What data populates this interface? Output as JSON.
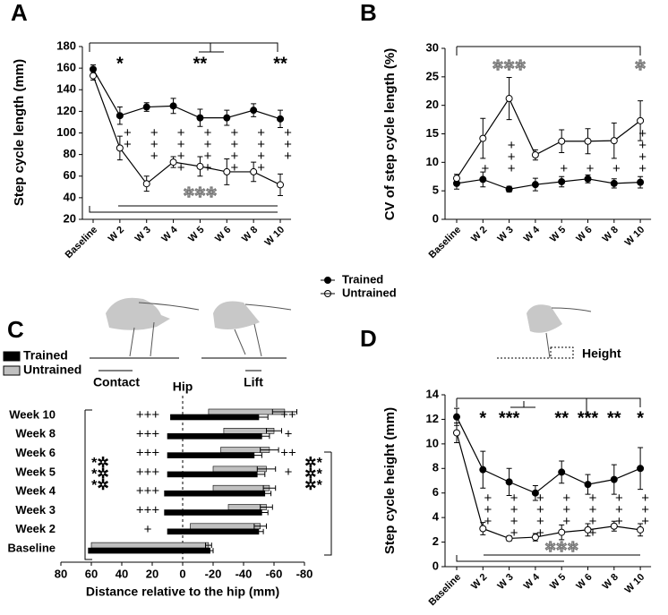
{
  "panels": [
    "A",
    "B",
    "C",
    "D"
  ],
  "legend": [
    {
      "name": "Trained",
      "fill": "#000000"
    },
    {
      "name": "Untrained",
      "fill": "#ffffff"
    }
  ],
  "chart_data": [
    {
      "type": "line",
      "ylabel": "Step cycle length (mm)",
      "categories": [
        "Baseline",
        "W 2",
        "W 3",
        "W 4",
        "W 5",
        "W 6",
        "W 8",
        "W 10"
      ],
      "series": [
        {
          "color": "#000000",
          "fill": "#000000",
          "values": [
            159,
            116,
            124,
            125,
            114,
            114,
            121,
            113
          ],
          "errors": [
            4,
            8,
            4,
            7,
            8,
            7,
            6,
            8
          ]
        },
        {
          "color": "#000000",
          "fill": "#ffffff",
          "values": [
            153,
            86,
            53,
            73,
            69,
            64,
            64,
            52
          ],
          "errors": [
            4,
            11,
            7,
            5,
            9,
            12,
            9,
            10
          ]
        }
      ],
      "ylim": [
        20,
        180
      ],
      "yticks": [
        20,
        40,
        60,
        80,
        100,
        120,
        140,
        160,
        180
      ],
      "stars": [
        null,
        "*",
        null,
        null,
        "**",
        null,
        null,
        "**"
      ],
      "plus": [
        null,
        "++",
        "+++",
        "++++",
        "++++",
        "++++",
        "++++",
        "+++"
      ],
      "hollow": [
        null,
        null,
        null,
        null,
        "✲✲✲",
        null,
        null,
        null
      ]
    },
    {
      "type": "line",
      "ylabel": "CV of step cycle length (%)",
      "categories": [
        "Baseline",
        "W 2",
        "W 3",
        "W 4",
        "W 5",
        "W 6",
        "W 8",
        "W 10"
      ],
      "series": [
        {
          "color": "#000000",
          "fill": "#000000",
          "values": [
            6.3,
            7.0,
            5.3,
            6.1,
            6.6,
            7.1,
            6.3,
            6.5
          ],
          "errors": [
            1.0,
            1.3,
            0.5,
            1.1,
            0.9,
            0.7,
            0.8,
            1.0
          ]
        },
        {
          "color": "#000000",
          "fill": "#ffffff",
          "values": [
            7.2,
            14.2,
            21.2,
            11.3,
            13.7,
            13.7,
            13.8,
            17.3
          ],
          "errors": [
            0.7,
            3.5,
            3.7,
            0.9,
            2.0,
            2.2,
            3.1,
            3.5
          ]
        }
      ],
      "ylim": [
        0,
        30
      ],
      "yticks": [
        0,
        5,
        10,
        15,
        20,
        25,
        30
      ],
      "plus": [
        null,
        "+",
        "+++",
        null,
        "+",
        "+",
        "+",
        "++++"
      ],
      "hollow": [
        null,
        null,
        "✲✲✲",
        null,
        null,
        null,
        null,
        "✲"
      ]
    },
    {
      "type": "range_bar",
      "xlabel": "Distance relative to the hip (mm)",
      "categories": [
        "Week 10",
        "Week 8",
        "Week 6",
        "Week 5",
        "Week 4",
        "Week 3",
        "Week 2",
        "Baseline"
      ],
      "series": [
        {
          "name": "Trained",
          "color": "#000000",
          "values": [
            [
              8,
              -50
            ],
            [
              10,
              -52
            ],
            [
              10,
              -47
            ],
            [
              10,
              -49
            ],
            [
              12,
              -54
            ],
            [
              12,
              -52
            ],
            [
              10,
              -50
            ],
            [
              62,
              -18
            ]
          ],
          "errors": [
            6,
            5,
            5,
            5,
            4,
            4,
            3,
            2
          ]
        },
        {
          "name": "Untrained",
          "color": "#c0c0c0",
          "values": [
            [
              -17,
              -67
            ],
            [
              -27,
              -60
            ],
            [
              -25,
              -57
            ],
            [
              -20,
              -55
            ],
            [
              -20,
              -57
            ],
            [
              -30,
              -55
            ],
            [
              -5,
              -51
            ],
            [
              60,
              -17
            ]
          ],
          "errors": [
            8,
            5,
            6,
            6,
            4,
            4,
            4,
            2
          ]
        }
      ],
      "xlim": [
        80,
        -80
      ],
      "xticks": [
        80,
        60,
        40,
        20,
        0,
        -20,
        -40,
        -60,
        -80
      ],
      "hip_label": "Hip",
      "contact_label": "Contact",
      "lift_label": "Lift",
      "plus_left": [
        "+++",
        "+++",
        "+++",
        "+++",
        "+++",
        "+++",
        "+",
        null
      ],
      "plus_right": [
        "++",
        "+",
        "++",
        "+",
        null,
        null,
        null,
        null
      ],
      "stars_left": [
        "*✲",
        "*✲",
        "*✲"
      ],
      "stars_right": [
        "✲*",
        "✲*",
        "✲*"
      ]
    },
    {
      "type": "line",
      "ylabel": "Step cycle height (mm)",
      "categories": [
        "Baseline",
        "W 2",
        "W 3",
        "W 4",
        "W 5",
        "W 6",
        "W 8",
        "W 10"
      ],
      "series": [
        {
          "color": "#000000",
          "fill": "#000000",
          "values": [
            12.2,
            7.9,
            6.9,
            6.0,
            7.7,
            6.7,
            7.1,
            8.0
          ],
          "errors": [
            0.7,
            1.5,
            1.1,
            0.6,
            0.9,
            0.8,
            1.2,
            1.7
          ]
        },
        {
          "color": "#000000",
          "fill": "#ffffff",
          "values": [
            10.9,
            3.1,
            2.3,
            2.4,
            2.8,
            3.0,
            3.3,
            3.0
          ],
          "errors": [
            0.8,
            0.5,
            0.2,
            0.3,
            0.6,
            0.5,
            0.4,
            0.5
          ]
        }
      ],
      "ylim": [
        0,
        14
      ],
      "yticks": [
        0,
        2,
        4,
        6,
        8,
        10,
        12,
        14
      ],
      "stars": [
        null,
        "*",
        "***",
        null,
        "**",
        "***",
        "**",
        "*"
      ],
      "plus": [
        null,
        "+++",
        "++++",
        "++++",
        "+++",
        "++++",
        "+++",
        "+++"
      ],
      "hollow": [
        null,
        null,
        null,
        null,
        "✲✲✲",
        null,
        null,
        null
      ],
      "diagram_label": "Height"
    }
  ]
}
